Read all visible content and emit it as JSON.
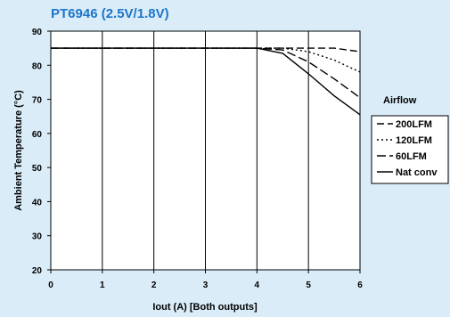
{
  "chart_data": {
    "type": "line",
    "title": "PT6946  (2.5V/1.8V)",
    "xlabel": "Iout (A) [Both outputs]",
    "ylabel": "Ambient Temperature (°C)",
    "xlim": [
      0,
      6
    ],
    "ylim": [
      20,
      90
    ],
    "x_ticks": [
      0,
      1,
      2,
      3,
      4,
      5,
      6
    ],
    "y_ticks": [
      20,
      30,
      40,
      50,
      60,
      70,
      80,
      90
    ],
    "grid": "vertical",
    "legend_title": "Airflow",
    "legend_position": "right",
    "series": [
      {
        "name": "200LFM",
        "dash": "8,4",
        "points": [
          [
            0,
            85
          ],
          [
            4,
            85
          ],
          [
            5,
            85
          ],
          [
            5.5,
            85
          ],
          [
            6,
            84
          ]
        ]
      },
      {
        "name": "120LFM",
        "dash": "2,3",
        "points": [
          [
            0,
            85
          ],
          [
            4,
            85
          ],
          [
            4.5,
            85
          ],
          [
            5,
            84
          ],
          [
            5.5,
            81.5
          ],
          [
            6,
            78
          ]
        ]
      },
      {
        "name": "60LFM",
        "dash": "10,4",
        "points": [
          [
            0,
            85
          ],
          [
            4,
            85
          ],
          [
            4.5,
            84.5
          ],
          [
            5,
            81
          ],
          [
            5.5,
            76
          ],
          [
            6,
            70.5
          ]
        ]
      },
      {
        "name": "Nat conv",
        "dash": "",
        "points": [
          [
            0,
            85
          ],
          [
            4,
            85
          ],
          [
            4.5,
            83.5
          ],
          [
            5,
            77.5
          ],
          [
            5.5,
            71
          ],
          [
            6,
            65.5
          ]
        ]
      }
    ]
  }
}
